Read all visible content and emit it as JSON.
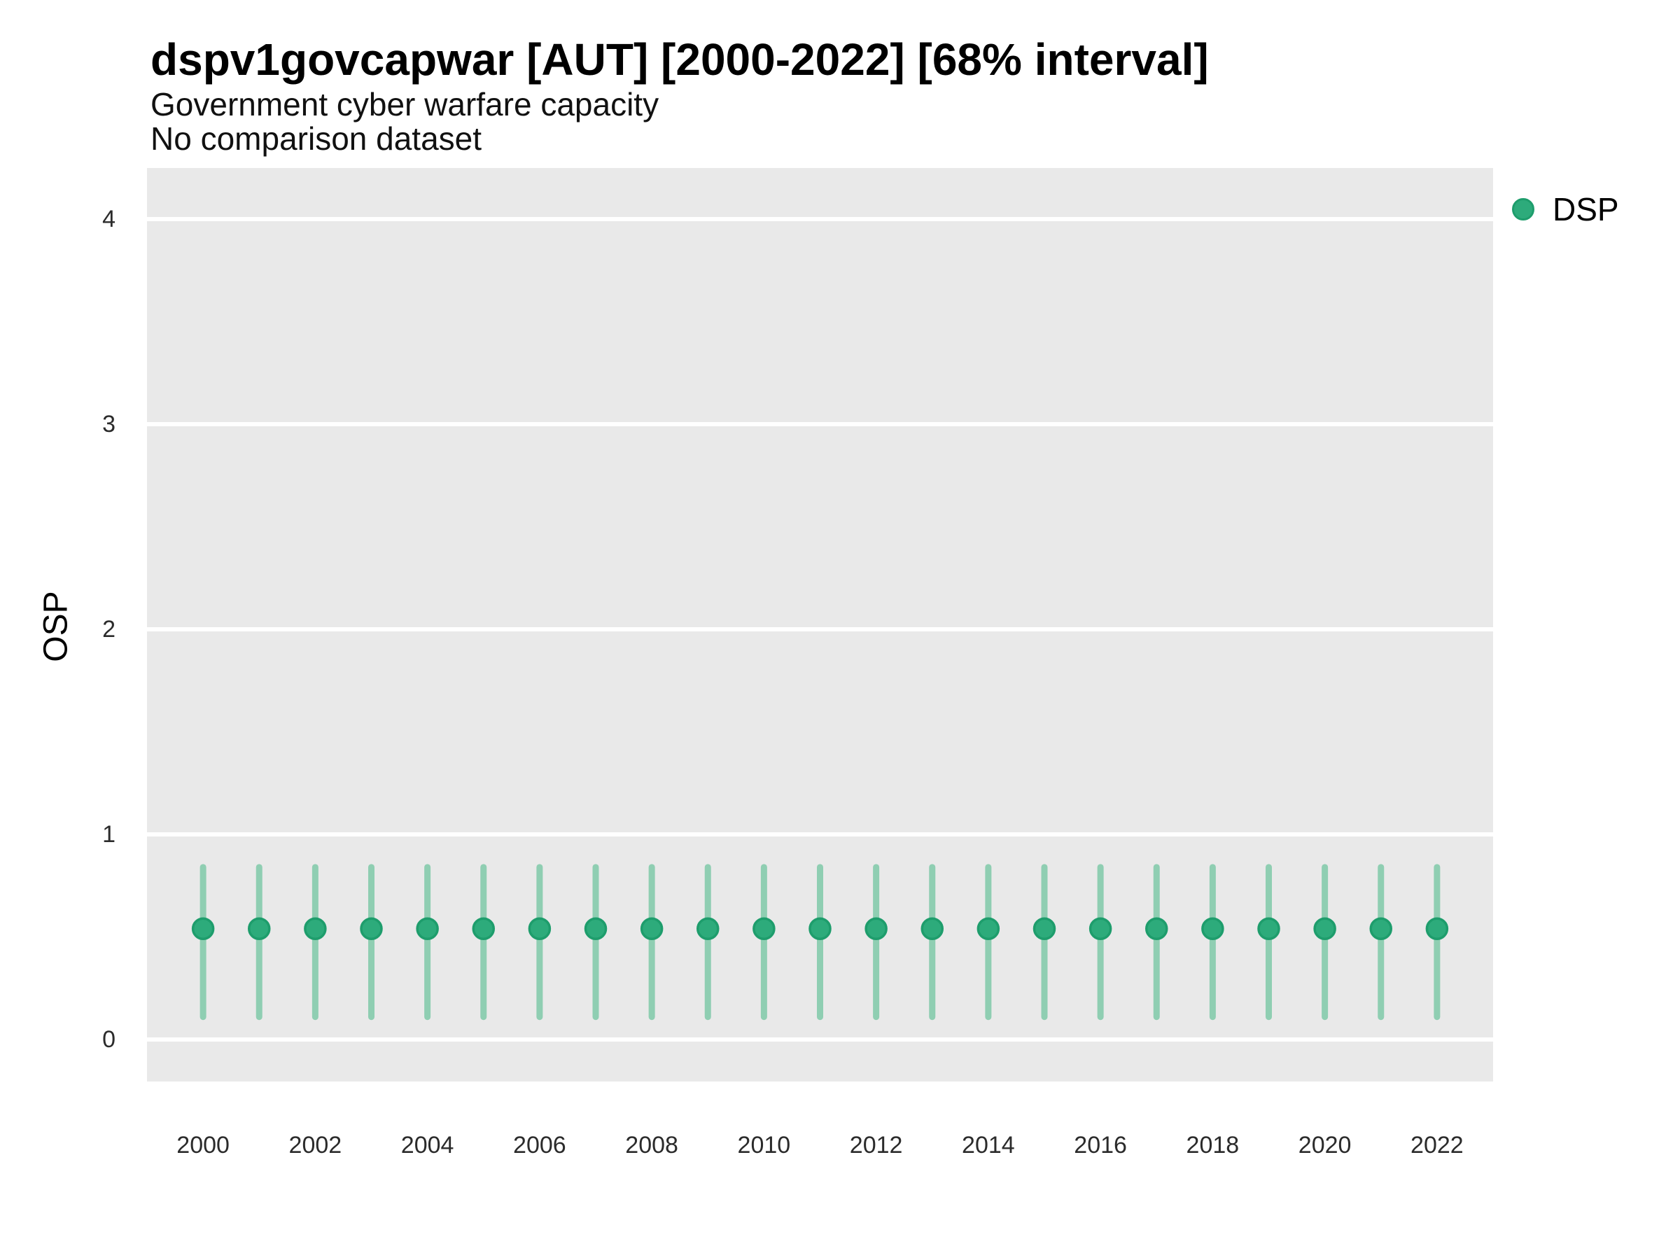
{
  "header": {
    "title": "dspv1govcapwar [AUT] [2000-2022] [68% interval]",
    "subtitle": "Government cyber warfare capacity",
    "note": "No comparison dataset"
  },
  "legend": {
    "items": [
      {
        "label": "DSP",
        "color": "#2DAB7B",
        "stroke": "#1E9D6C"
      }
    ]
  },
  "y_axis": {
    "label": "OSP",
    "ticks": [
      0,
      1,
      2,
      3,
      4
    ]
  },
  "x_axis": {
    "tick_labels": [
      2000,
      2002,
      2004,
      2006,
      2008,
      2010,
      2012,
      2014,
      2016,
      2018,
      2020,
      2022
    ]
  },
  "colors": {
    "panel_bg": "#E9E9E9",
    "gridline": "#FFFFFF",
    "interval_bar": "#8FCEB2",
    "point_fill": "#2DAB7B",
    "point_stroke": "#1E9D6C"
  },
  "chart_data": {
    "type": "scatter",
    "title": "dspv1govcapwar [AUT] [2000-2022] [68% interval]",
    "subtitle": "Government cyber warfare capacity",
    "note": "No comparison dataset",
    "xlabel": "",
    "ylabel": "OSP",
    "interval": "68%",
    "legend_position": "right-top",
    "grid": "major-horizontal-white-on-gray",
    "xlim": [
      1999,
      2023
    ],
    "ylim": [
      -0.205,
      4.249
    ],
    "x": [
      2000,
      2001,
      2002,
      2003,
      2004,
      2005,
      2006,
      2007,
      2008,
      2009,
      2010,
      2011,
      2012,
      2013,
      2014,
      2015,
      2016,
      2017,
      2018,
      2019,
      2020,
      2021,
      2022
    ],
    "series": [
      {
        "name": "DSP",
        "values": [
          0.54,
          0.54,
          0.54,
          0.54,
          0.54,
          0.54,
          0.54,
          0.54,
          0.54,
          0.54,
          0.54,
          0.54,
          0.54,
          0.54,
          0.54,
          0.54,
          0.54,
          0.54,
          0.54,
          0.54,
          0.54,
          0.54,
          0.54
        ],
        "interval_low": [
          0.11,
          0.11,
          0.11,
          0.11,
          0.11,
          0.11,
          0.11,
          0.11,
          0.11,
          0.11,
          0.11,
          0.11,
          0.11,
          0.11,
          0.11,
          0.11,
          0.11,
          0.11,
          0.11,
          0.11,
          0.11,
          0.11,
          0.11
        ],
        "interval_high": [
          0.84,
          0.84,
          0.84,
          0.84,
          0.84,
          0.84,
          0.84,
          0.84,
          0.84,
          0.84,
          0.84,
          0.84,
          0.84,
          0.84,
          0.84,
          0.84,
          0.84,
          0.84,
          0.84,
          0.84,
          0.84,
          0.84,
          0.84
        ]
      }
    ]
  }
}
